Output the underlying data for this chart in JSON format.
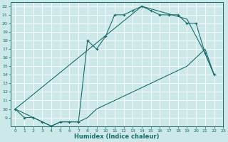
{
  "xlabel": "Humidex (Indice chaleur)",
  "bg_color": "#cce8e8",
  "grid_color": "#b0d4d4",
  "line_color": "#1a6b6b",
  "xlim": [
    -0.5,
    23
  ],
  "ylim": [
    8,
    22.5
  ],
  "xticks": [
    0,
    1,
    2,
    3,
    4,
    5,
    6,
    7,
    8,
    9,
    10,
    11,
    12,
    13,
    14,
    15,
    16,
    17,
    18,
    19,
    20,
    21,
    22,
    23
  ],
  "yticks": [
    9,
    10,
    11,
    12,
    13,
    14,
    15,
    16,
    17,
    18,
    19,
    20,
    21,
    22
  ],
  "line1_x": [
    0,
    1,
    2,
    3,
    4,
    5,
    6,
    7,
    8,
    9,
    10,
    11,
    12,
    13,
    14,
    15,
    16,
    17,
    18,
    19,
    20,
    21,
    22
  ],
  "line1_y": [
    10,
    9,
    9,
    8.5,
    8,
    8.5,
    8.5,
    8.5,
    18,
    17,
    18.5,
    21,
    21,
    21.5,
    22,
    21.5,
    21,
    21,
    21,
    20,
    20,
    16.5,
    14
  ],
  "line2_x": [
    0,
    3,
    4,
    5,
    6,
    7,
    8,
    9,
    10,
    11,
    12,
    13,
    14,
    15,
    16,
    17,
    18,
    19,
    20,
    21,
    22
  ],
  "line2_y": [
    10,
    8.5,
    8,
    8.5,
    8.5,
    8.5,
    9,
    10,
    10.5,
    11,
    11.5,
    12,
    12.5,
    13,
    13.5,
    14,
    14.5,
    15,
    16,
    17,
    14
  ],
  "line3_x": [
    0,
    14,
    19,
    21,
    22
  ],
  "line3_y": [
    10,
    22,
    20.5,
    16.5,
    14
  ]
}
